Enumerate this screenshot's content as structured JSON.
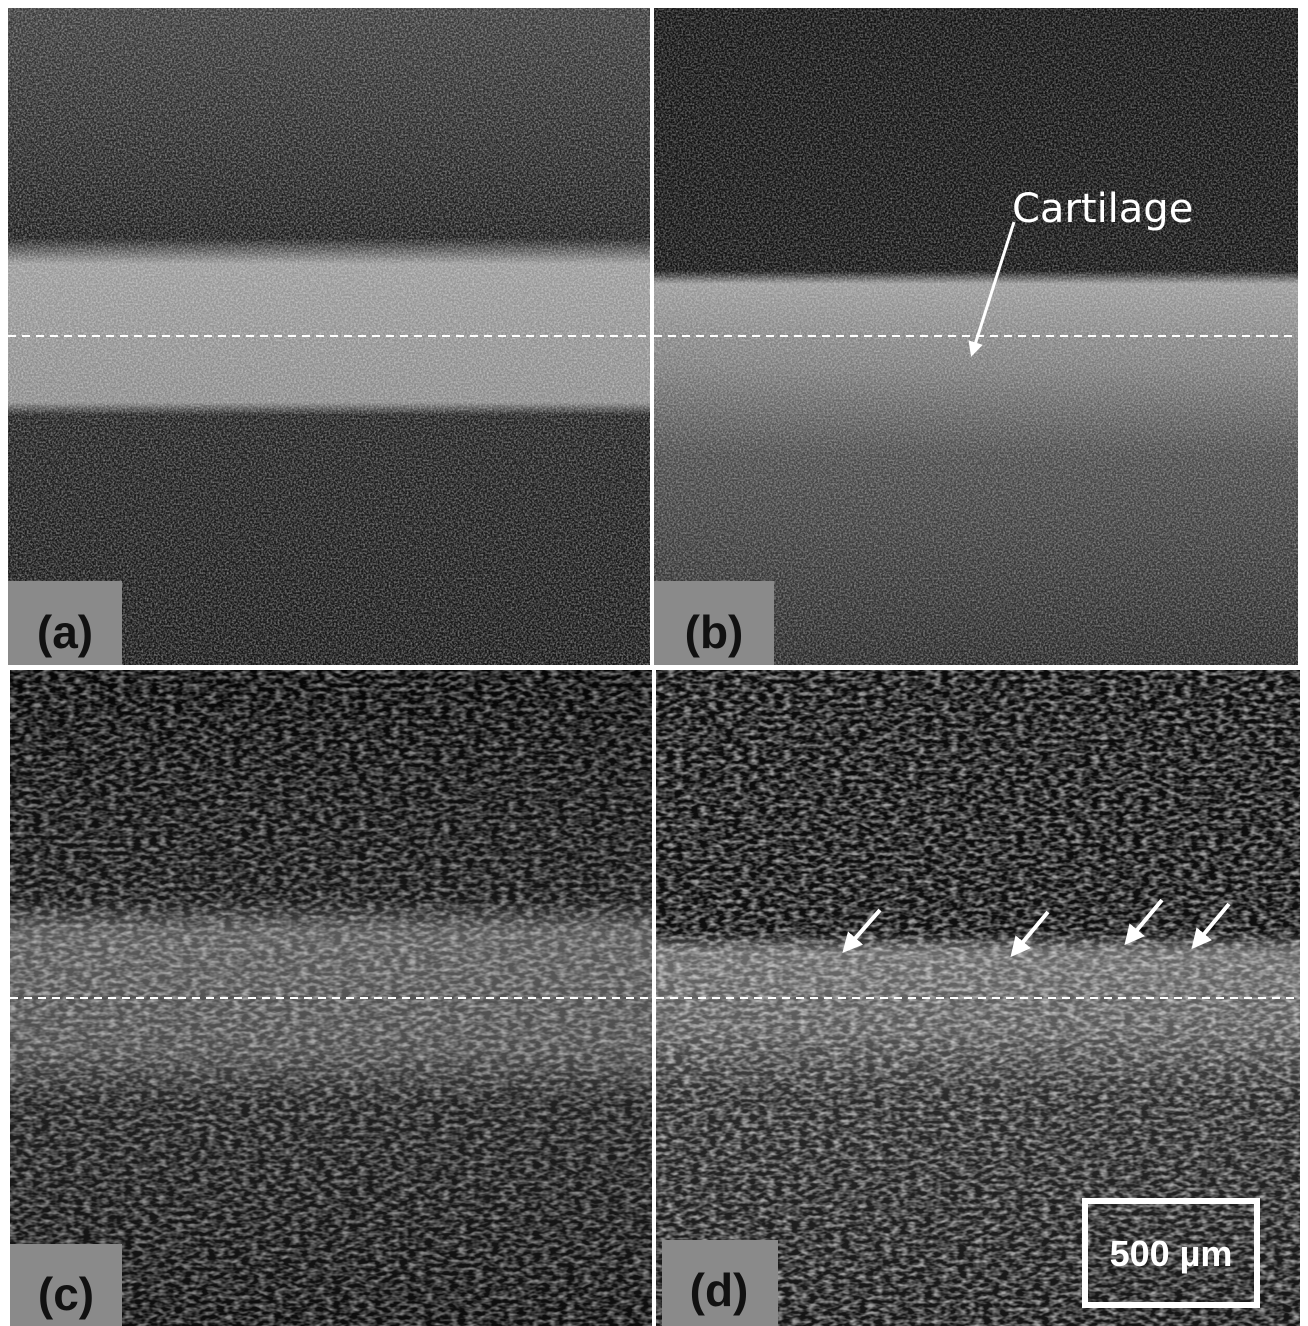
{
  "panels": [
    {
      "label": "(a)"
    },
    {
      "label": "(b)",
      "annotation": "Cartilage"
    },
    {
      "label": "(c)"
    },
    {
      "label": "(d)",
      "scale_bar": "500 µm"
    }
  ]
}
